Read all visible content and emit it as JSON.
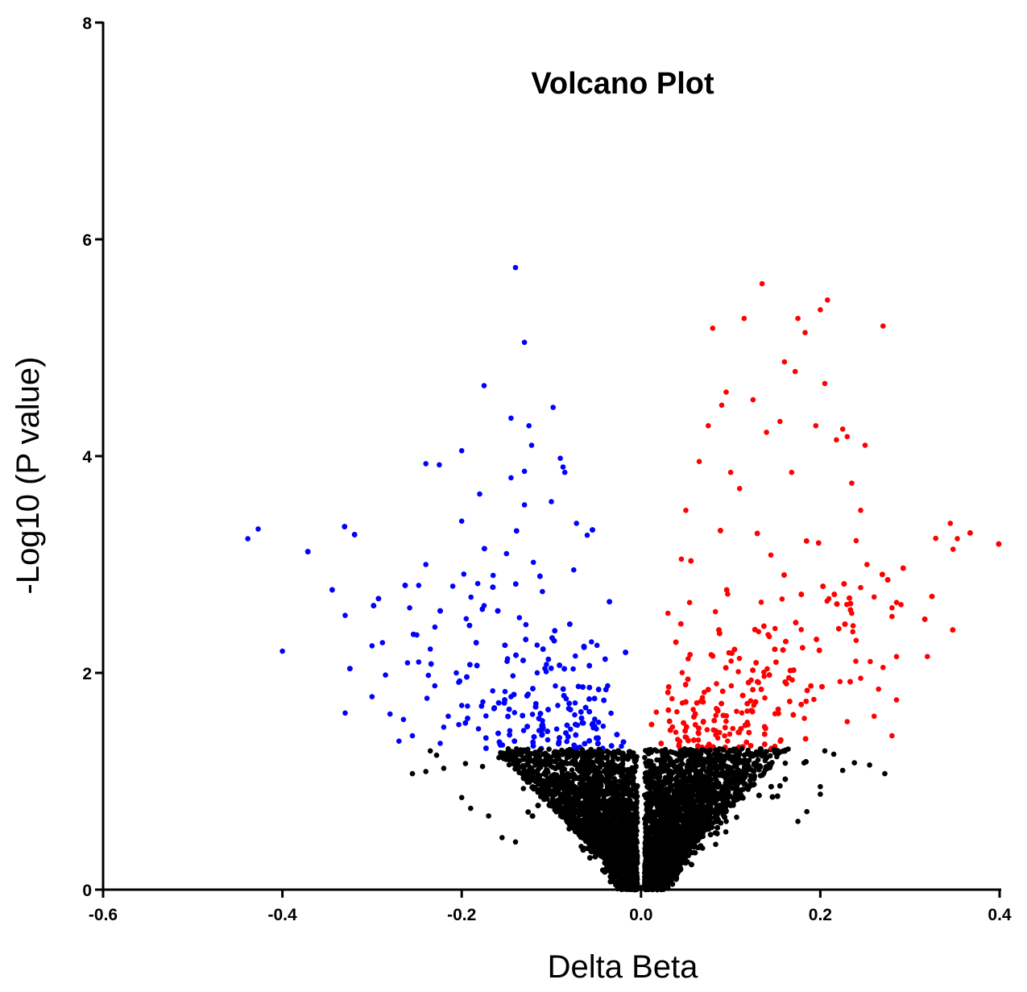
{
  "chart_data": {
    "type": "scatter",
    "title": "Volcano Plot",
    "xlabel": "Delta Beta",
    "ylabel": "-Log10 (P value)",
    "xlim": [
      -0.6,
      0.4
    ],
    "ylim": [
      0,
      8
    ],
    "x_ticks": [
      "-0.6",
      "-0.4",
      "-0.2",
      "0.0",
      "0.2",
      "0.4"
    ],
    "y_ticks": [
      "0",
      "2",
      "4",
      "6",
      "8"
    ],
    "significance_threshold_y": 1.3,
    "grid": false,
    "legend": "none",
    "colors": {
      "hypomethylated": "#0000ff",
      "hypermethylated": "#ff0000",
      "not_significant": "#000000"
    },
    "series": [
      {
        "color": "#0000ff",
        "points": [
          [
            -0.14,
            5.74
          ],
          [
            -0.13,
            5.05
          ],
          [
            -0.175,
            4.65
          ],
          [
            -0.098,
            4.45
          ],
          [
            -0.145,
            4.35
          ],
          [
            -0.125,
            4.28
          ],
          [
            -0.2,
            4.05
          ],
          [
            -0.122,
            4.1
          ],
          [
            -0.09,
            3.98
          ],
          [
            -0.24,
            3.93
          ],
          [
            -0.225,
            3.92
          ],
          [
            -0.13,
            3.86
          ],
          [
            -0.087,
            3.9
          ],
          [
            -0.085,
            3.85
          ],
          [
            -0.145,
            3.8
          ],
          [
            -0.18,
            3.65
          ],
          [
            -0.1,
            3.58
          ],
          [
            -0.13,
            3.55
          ],
          [
            -0.072,
            3.38
          ],
          [
            -0.06,
            3.27
          ],
          [
            -0.2,
            3.4
          ],
          [
            -0.15,
            3.1
          ],
          [
            -0.24,
            3.0
          ],
          [
            -0.21,
            2.8
          ],
          [
            -0.33,
            2.53
          ],
          [
            -0.4,
            2.2
          ],
          [
            -0.3,
            2.25
          ],
          [
            -0.285,
            1.98
          ],
          [
            -0.3,
            1.78
          ],
          [
            -0.33,
            1.63
          ],
          [
            -0.28,
            1.62
          ],
          [
            -0.265,
            1.57
          ],
          [
            -0.27,
            1.37
          ],
          [
            -0.255,
            1.42
          ],
          [
            -0.248,
            2.1
          ],
          [
            -0.23,
            1.88
          ],
          [
            -0.22,
            1.5
          ],
          [
            -0.215,
            1.6
          ],
          [
            -0.258,
            2.6
          ],
          [
            -0.25,
            2.35
          ],
          [
            -0.235,
            2.22
          ],
          [
            -0.206,
            2.0
          ],
          [
            -0.2,
            1.7
          ],
          [
            -0.224,
            1.35
          ],
          [
            -0.195,
            2.5
          ],
          [
            -0.175,
            2.62
          ],
          [
            -0.165,
            2.9
          ],
          [
            -0.12,
            3.02
          ],
          [
            -0.075,
            2.95
          ],
          [
            -0.11,
            2.75
          ]
        ]
      },
      {
        "color": "#ff0000",
        "points": [
          [
            0.135,
            5.59
          ],
          [
            0.208,
            5.44
          ],
          [
            0.115,
            5.27
          ],
          [
            0.175,
            5.27
          ],
          [
            0.08,
            5.18
          ],
          [
            0.183,
            5.14
          ],
          [
            0.27,
            5.2
          ],
          [
            0.2,
            5.35
          ],
          [
            0.16,
            4.87
          ],
          [
            0.172,
            4.78
          ],
          [
            0.205,
            4.67
          ],
          [
            0.095,
            4.59
          ],
          [
            0.125,
            4.52
          ],
          [
            0.09,
            4.47
          ],
          [
            0.155,
            4.32
          ],
          [
            0.225,
            4.25
          ],
          [
            0.23,
            4.18
          ],
          [
            0.218,
            4.15
          ],
          [
            0.25,
            4.1
          ],
          [
            0.195,
            4.28
          ],
          [
            0.14,
            4.22
          ],
          [
            0.075,
            4.28
          ],
          [
            0.065,
            3.95
          ],
          [
            0.168,
            3.85
          ],
          [
            0.345,
            3.38
          ],
          [
            0.235,
            3.75
          ],
          [
            0.245,
            3.5
          ],
          [
            0.285,
            2.65
          ],
          [
            0.29,
            2.63
          ],
          [
            0.28,
            2.6
          ],
          [
            0.28,
            2.52
          ],
          [
            0.26,
            2.7
          ],
          [
            0.285,
            2.15
          ],
          [
            0.27,
            2.05
          ],
          [
            0.265,
            1.85
          ],
          [
            0.285,
            1.75
          ],
          [
            0.26,
            1.6
          ],
          [
            0.28,
            1.42
          ],
          [
            0.245,
            1.95
          ],
          [
            0.24,
            2.3
          ],
          [
            0.23,
            1.55
          ],
          [
            0.222,
            1.92
          ],
          [
            0.235,
            2.55
          ],
          [
            0.252,
            3.0
          ],
          [
            0.24,
            3.22
          ],
          [
            0.05,
            3.5
          ],
          [
            0.045,
            3.05
          ],
          [
            0.1,
            3.85
          ],
          [
            0.11,
            3.7
          ],
          [
            0.03,
            2.55
          ]
        ]
      },
      {
        "color": "#000000",
        "points": [
          [
            0.272,
            1.07
          ],
          [
            0.255,
            1.15
          ],
          [
            0.238,
            1.17
          ],
          [
            0.225,
            1.1
          ],
          [
            0.215,
            1.25
          ],
          [
            0.205,
            1.28
          ],
          [
            0.2,
            0.95
          ],
          [
            0.2,
            0.88
          ],
          [
            0.185,
            0.72
          ],
          [
            0.175,
            0.63
          ],
          [
            -0.228,
            1.24
          ],
          [
            -0.255,
            1.07
          ],
          [
            -0.24,
            1.09
          ],
          [
            -0.22,
            1.12
          ],
          [
            -0.235,
            1.28
          ],
          [
            -0.2,
            0.85
          ],
          [
            -0.19,
            0.75
          ],
          [
            -0.17,
            0.68
          ],
          [
            -0.155,
            0.48
          ],
          [
            -0.14,
            0.44
          ],
          [
            -0.01,
            0.05
          ],
          [
            0.01,
            0.05
          ],
          [
            0.0,
            0.02
          ],
          [
            -0.02,
            0.15
          ],
          [
            0.02,
            0.15
          ]
        ]
      }
    ]
  }
}
